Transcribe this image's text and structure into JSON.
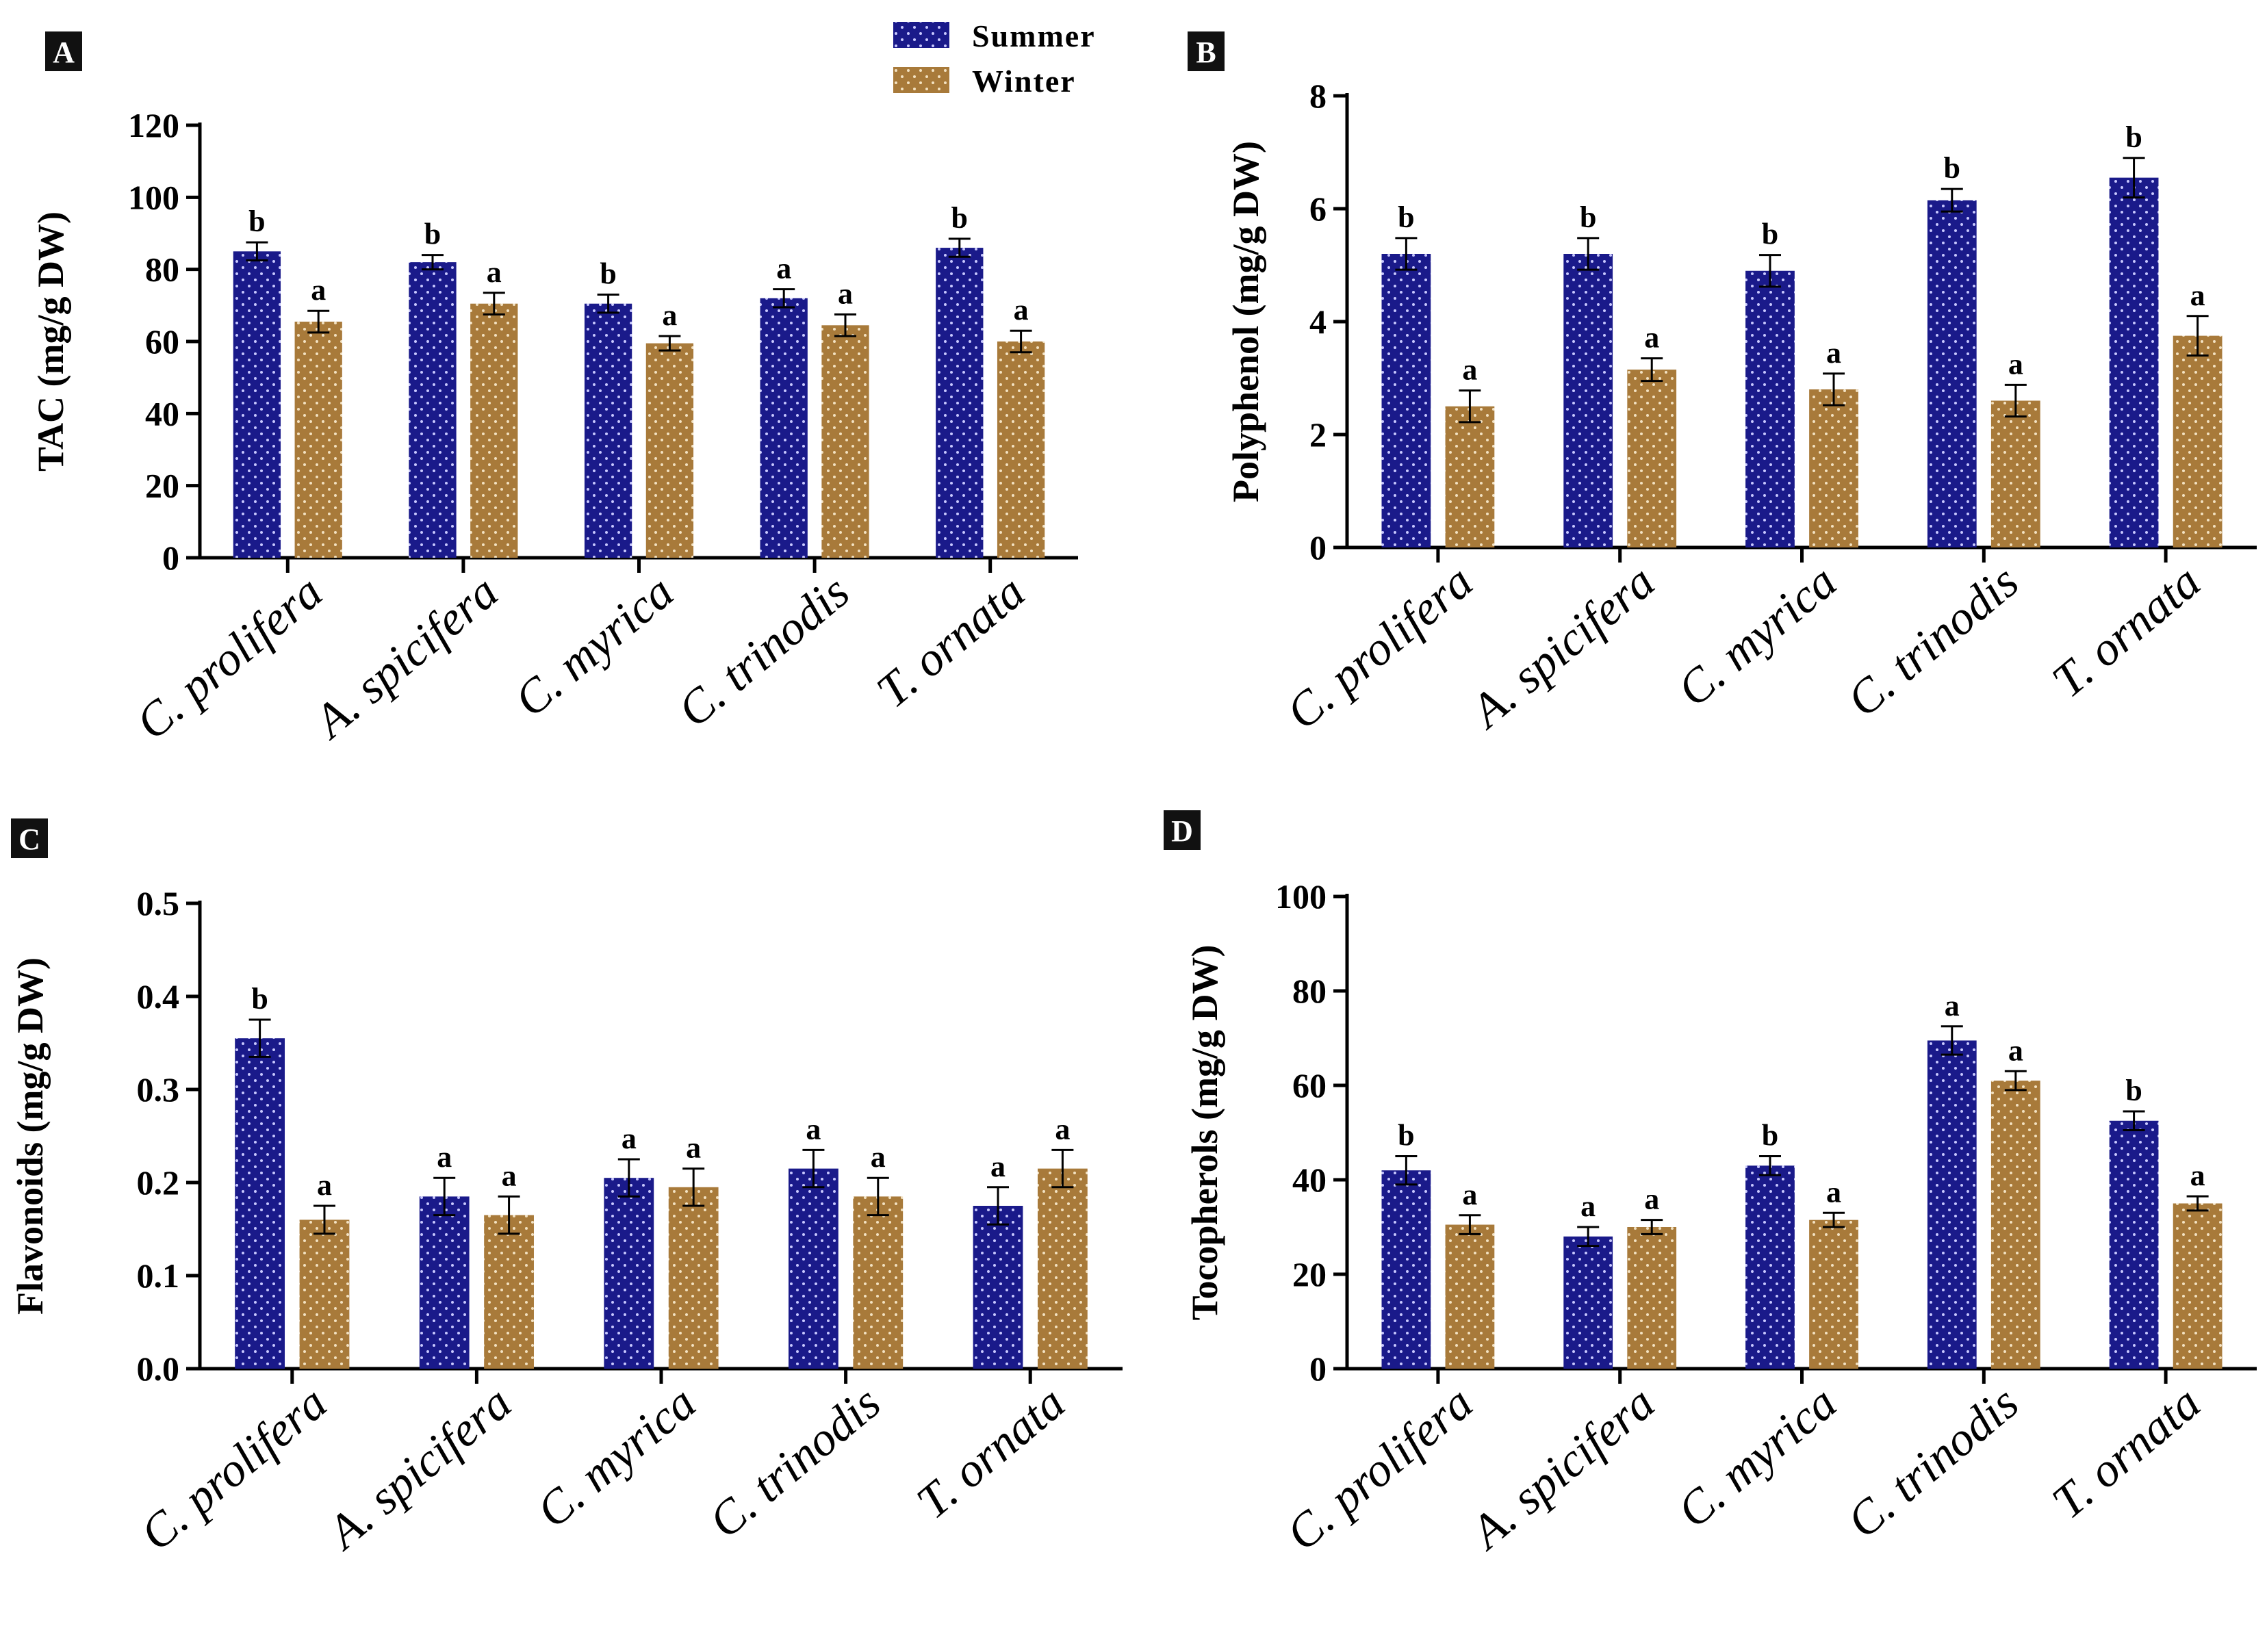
{
  "legend": {
    "summer_label": "Summer",
    "winter_label": "Winter",
    "summer_color": "#1a1a8a",
    "winter_color": "#a87a3a"
  },
  "chart_data": [
    {
      "type": "bar",
      "panel": "A",
      "ylabel": "TAC (mg/g DW)",
      "ylim": [
        0,
        120
      ],
      "yticks": [
        0,
        20,
        40,
        60,
        80,
        100,
        120
      ],
      "ytick_labels": [
        "0",
        "20",
        "40",
        "60",
        "80",
        "100",
        "120"
      ],
      "categories": [
        "C. prolifera",
        "A. spicifera",
        "C. myrica",
        "C. trinodis",
        "T. ornata"
      ],
      "series": [
        {
          "name": "Summer",
          "values": [
            85,
            82,
            70.5,
            72,
            86
          ],
          "errors": [
            2.5,
            2,
            2.5,
            2.5,
            2.5
          ],
          "labels": [
            "b",
            "b",
            "b",
            "a",
            "b"
          ]
        },
        {
          "name": "Winter",
          "values": [
            65.5,
            70.5,
            59.5,
            64.5,
            60
          ],
          "errors": [
            3,
            3,
            2,
            3,
            3
          ],
          "labels": [
            "a",
            "a",
            "a",
            "a",
            "a"
          ]
        }
      ]
    },
    {
      "type": "bar",
      "panel": "B",
      "ylabel": "Polyphenol (mg/g DW)",
      "ylim": [
        0,
        8
      ],
      "yticks": [
        0,
        2,
        4,
        6,
        8
      ],
      "ytick_labels": [
        "0",
        "2",
        "4",
        "6",
        "8"
      ],
      "categories": [
        "C. prolifera",
        "A. spicifera",
        "C. myrica",
        "C. trinodis",
        "T. ornata"
      ],
      "series": [
        {
          "name": "Summer",
          "values": [
            5.2,
            5.2,
            4.9,
            6.15,
            6.55
          ],
          "errors": [
            0.28,
            0.28,
            0.28,
            0.2,
            0.35
          ],
          "labels": [
            "b",
            "b",
            "b",
            "b",
            "b"
          ]
        },
        {
          "name": "Winter",
          "values": [
            2.5,
            3.15,
            2.8,
            2.6,
            3.75
          ],
          "errors": [
            0.28,
            0.2,
            0.28,
            0.28,
            0.35
          ],
          "labels": [
            "a",
            "a",
            "a",
            "a",
            "a"
          ]
        }
      ]
    },
    {
      "type": "bar",
      "panel": "C",
      "ylabel": "Flavonoids (mg/g DW)",
      "ylim": [
        0,
        0.5
      ],
      "yticks": [
        0,
        0.1,
        0.2,
        0.3,
        0.4,
        0.5
      ],
      "ytick_labels": [
        "0.0",
        "0.1",
        "0.2",
        "0.3",
        "0.4",
        "0.5"
      ],
      "categories": [
        "C. prolifera",
        "A. spicifera",
        "C. myrica",
        "C. trinodis",
        "T. ornata"
      ],
      "series": [
        {
          "name": "Summer",
          "values": [
            0.355,
            0.185,
            0.205,
            0.215,
            0.175
          ],
          "errors": [
            0.02,
            0.02,
            0.02,
            0.02,
            0.02
          ],
          "labels": [
            "b",
            "a",
            "a",
            "a",
            "a"
          ]
        },
        {
          "name": "Winter",
          "values": [
            0.16,
            0.165,
            0.195,
            0.185,
            0.215
          ],
          "errors": [
            0.015,
            0.02,
            0.02,
            0.02,
            0.02
          ],
          "labels": [
            "a",
            "a",
            "a",
            "a",
            "a"
          ]
        }
      ]
    },
    {
      "type": "bar",
      "panel": "D",
      "ylabel": "Tocopherols (mg/g DW)",
      "ylim": [
        0,
        100
      ],
      "yticks": [
        0,
        20,
        40,
        60,
        80,
        100
      ],
      "ytick_labels": [
        "0",
        "20",
        "40",
        "60",
        "80",
        "100"
      ],
      "categories": [
        "C. prolifera",
        "A. spicifera",
        "C. myrica",
        "C. trinodis",
        "T. ornata"
      ],
      "series": [
        {
          "name": "Summer",
          "values": [
            42,
            28,
            43,
            69.5,
            52.5
          ],
          "errors": [
            3,
            2,
            2,
            3,
            2
          ],
          "labels": [
            "b",
            "a",
            "b",
            "a",
            "b"
          ]
        },
        {
          "name": "Winter",
          "values": [
            30.5,
            30,
            31.5,
            61,
            35
          ],
          "errors": [
            2,
            1.5,
            1.5,
            2,
            1.5
          ],
          "labels": [
            "a",
            "a",
            "a",
            "a",
            "a"
          ]
        }
      ]
    }
  ]
}
